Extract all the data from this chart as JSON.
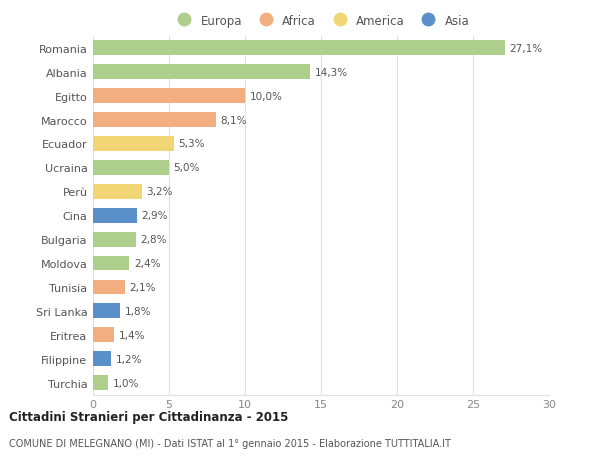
{
  "categories": [
    "Romania",
    "Albania",
    "Egitto",
    "Marocco",
    "Ecuador",
    "Ucraina",
    "Perù",
    "Cina",
    "Bulgaria",
    "Moldova",
    "Tunisia",
    "Sri Lanka",
    "Eritrea",
    "Filippine",
    "Turchia"
  ],
  "values": [
    27.1,
    14.3,
    10.0,
    8.1,
    5.3,
    5.0,
    3.2,
    2.9,
    2.8,
    2.4,
    2.1,
    1.8,
    1.4,
    1.2,
    1.0
  ],
  "labels": [
    "27,1%",
    "14,3%",
    "10,0%",
    "8,1%",
    "5,3%",
    "5,0%",
    "3,2%",
    "2,9%",
    "2,8%",
    "2,4%",
    "2,1%",
    "1,8%",
    "1,4%",
    "1,2%",
    "1,0%"
  ],
  "continents": [
    "Europa",
    "Europa",
    "Africa",
    "Africa",
    "America",
    "Europa",
    "America",
    "Asia",
    "Europa",
    "Europa",
    "Africa",
    "Asia",
    "Africa",
    "Asia",
    "Europa"
  ],
  "colors": {
    "Europa": "#aece8b",
    "Africa": "#f2ad80",
    "America": "#f2d675",
    "Asia": "#5b8fc9"
  },
  "legend_labels": [
    "Europa",
    "Africa",
    "America",
    "Asia"
  ],
  "title_bold": "Cittadini Stranieri per Cittadinanza - 2015",
  "subtitle": "COMUNE DI MELEGNANO (MI) - Dati ISTAT al 1° gennaio 2015 - Elaborazione TUTTITALIA.IT",
  "xlim": [
    0,
    30
  ],
  "xticks": [
    0,
    5,
    10,
    15,
    20,
    25,
    30
  ],
  "bg_color": "#ffffff",
  "grid_color": "#e0e0e0"
}
